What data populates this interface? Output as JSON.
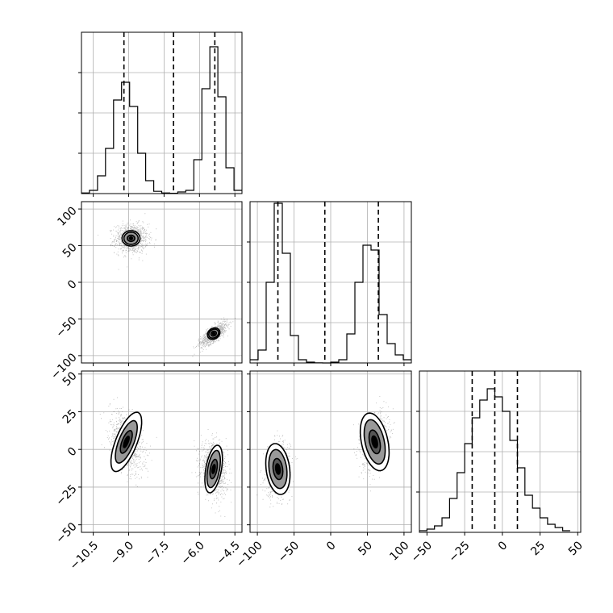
{
  "chart_data": {
    "type": "corner",
    "parameters": [
      {
        "name": "",
        "range": [
          -11,
          -4.2
        ],
        "ticks": [
          -10.5,
          -9.0,
          -7.5,
          -6.0,
          -4.5
        ],
        "tick_labels": [
          "−10.5",
          "−9.0",
          "−7.5",
          "−6.0",
          "−4.5"
        ],
        "histogram": {
          "bin_edges": [
            -11.0,
            -10.66,
            -10.32,
            -9.98,
            -9.64,
            -9.3,
            -8.96,
            -8.62,
            -8.28,
            -7.94,
            -7.6,
            -7.26,
            -6.92,
            -6.58,
            -6.24,
            -5.9,
            -5.56,
            -5.22,
            -4.88,
            -4.54,
            -4.2
          ],
          "counts": [
            0.004,
            0.02,
            0.11,
            0.28,
            0.58,
            0.69,
            0.54,
            0.25,
            0.08,
            0.014,
            0.004,
            0.002,
            0.01,
            0.02,
            0.21,
            0.65,
            0.91,
            0.6,
            0.16,
            0.02
          ],
          "ylim": [
            0,
            1
          ]
        },
        "quantile_lines": [
          -9.2,
          -7.1,
          -5.35
        ]
      },
      {
        "name": "",
        "range": [
          -110,
          110
        ],
        "ticks": [
          -100,
          -50,
          0,
          50,
          100
        ],
        "tick_labels": [
          "−100",
          "−50",
          "0",
          "50",
          "100"
        ],
        "histogram": {
          "bin_edges": [
            -110,
            -99,
            -88,
            -77,
            -66,
            -55,
            -44,
            -33,
            -22,
            -11,
            0,
            11,
            22,
            33,
            44,
            55,
            66,
            77,
            88,
            99,
            110
          ],
          "counts": [
            0.02,
            0.08,
            0.5,
            0.99,
            0.68,
            0.17,
            0.02,
            0.005,
            0.001,
            0.0,
            0.005,
            0.02,
            0.18,
            0.5,
            0.73,
            0.7,
            0.3,
            0.12,
            0.05,
            0.02
          ],
          "ylim": [
            0,
            1
          ]
        },
        "quantile_lines": [
          -72,
          -8,
          65
        ]
      },
      {
        "name": "",
        "range": [
          -55,
          52
        ],
        "ticks": [
          -50,
          -25,
          0,
          25,
          50
        ],
        "tick_labels": [
          "−50",
          "−25",
          "0",
          "25",
          "50"
        ],
        "histogram": {
          "bin_edges": [
            -55.0,
            -50.0,
            -45.0,
            -40.0,
            -35.0,
            -30.0,
            -25.0,
            -20.0,
            -15.0,
            -10.0,
            -5.0,
            0.0,
            5.0,
            10.0,
            15.0,
            20.0,
            25.0,
            30.0,
            35.0,
            40.0,
            45.0
          ],
          "counts": [
            0.01,
            0.02,
            0.04,
            0.09,
            0.21,
            0.37,
            0.55,
            0.71,
            0.82,
            0.89,
            0.84,
            0.75,
            0.57,
            0.4,
            0.23,
            0.15,
            0.09,
            0.05,
            0.03,
            0.01
          ],
          "ylim": [
            0,
            1
          ]
        },
        "quantile_lines": [
          -20,
          -5,
          10
        ]
      }
    ],
    "scatter_panels": [
      {
        "x_param": 0,
        "y_param": 1,
        "modes": [
          {
            "center": [
              -8.9,
              60
            ],
            "sd": [
              0.35,
              10
            ],
            "rho": 0,
            "contour_levels": [
              [
                0.06,
                1.8
              ],
              [
                0.16,
                4.2
              ],
              [
                0.3,
                8.4
              ],
              [
                0.38,
                10.5
              ]
            ]
          },
          {
            "center": [
              -5.4,
              -70
            ],
            "sd": [
              0.28,
              8
            ],
            "rho": 0.75,
            "contour_levels": [
              [
                0.05,
                1.4
              ],
              [
                0.12,
                3.2
              ],
              [
                0.22,
                5.6
              ],
              [
                0.28,
                7.2
              ]
            ]
          }
        ]
      },
      {
        "x_param": 0,
        "y_param": 2,
        "modes": [
          {
            "center": [
              -9.1,
              5
            ],
            "sd": [
              0.35,
              10
            ],
            "rho": -0.45,
            "contour_levels": [
              [
                0.08,
                4
              ],
              [
                0.18,
                8
              ],
              [
                0.32,
                15
              ],
              [
                0.45,
                21
              ]
            ]
          },
          {
            "center": [
              -5.4,
              -13
            ],
            "sd": [
              0.28,
              8.5
            ],
            "rho": -0.2,
            "contour_levels": [
              [
                0.06,
                3
              ],
              [
                0.14,
                6.5
              ],
              [
                0.25,
                12.5
              ],
              [
                0.33,
                16
              ]
            ]
          }
        ]
      },
      {
        "x_param": 1,
        "y_param": 2,
        "modes": [
          {
            "center": [
              -72,
              -13
            ],
            "sd": [
              8,
              8.5
            ],
            "rho": 0.15,
            "contour_levels": [
              [
                3,
                3.5
              ],
              [
                6.5,
                7
              ],
              [
                12,
                13
              ],
              [
                16,
                17
              ]
            ]
          },
          {
            "center": [
              60,
              5
            ],
            "sd": [
              9,
              9
            ],
            "rho": 0.25,
            "contour_levels": [
              [
                3.5,
                4
              ],
              [
                7,
                8
              ],
              [
                13,
                15
              ],
              [
                18,
                19.5
              ]
            ]
          }
        ]
      }
    ],
    "grid": true,
    "contour_colors": [
      "#000000",
      "#555555",
      "#999999",
      "#d9d9d9"
    ]
  }
}
